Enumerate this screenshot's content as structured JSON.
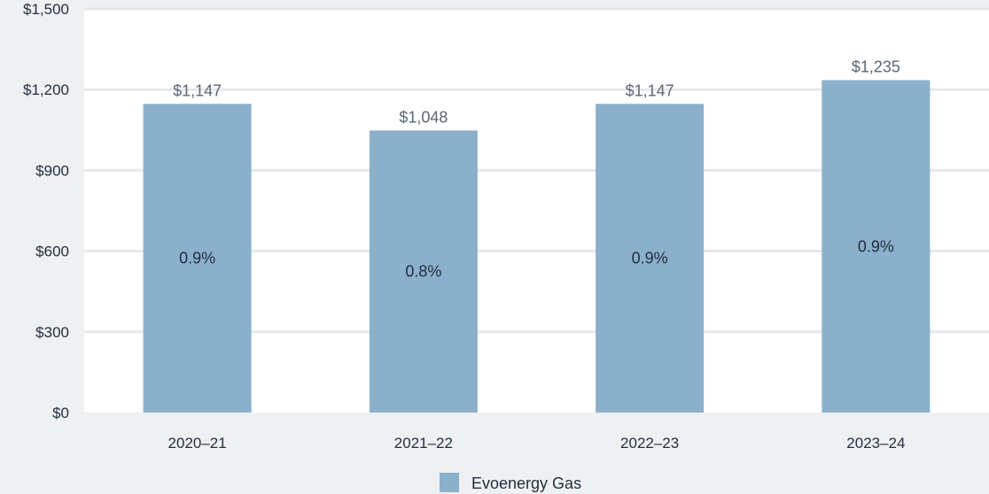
{
  "chart_data": {
    "type": "bar",
    "categories": [
      "2020–21",
      "2021–22",
      "2022–23",
      "2023–24"
    ],
    "series": [
      {
        "name": "Evoenergy Gas",
        "values": [
          1147,
          1048,
          1147,
          1235
        ],
        "value_labels": [
          "$1,147",
          "$1,048",
          "$1,147",
          "$1,235"
        ],
        "inner_labels": [
          "0.9%",
          "0.8%",
          "0.9%",
          "0.9%"
        ],
        "color": "#8bb0cc"
      }
    ],
    "ylim": [
      0,
      1500
    ],
    "yticks": [
      0,
      300,
      600,
      900,
      1200,
      1500
    ],
    "ytick_labels": [
      "$0",
      "$300",
      "$600",
      "$900",
      "$1,200",
      "$1,500"
    ],
    "grid": true,
    "legend_position": "bottom-center",
    "colors": {
      "background": "#eff0f2",
      "plot_background": "#ffffff",
      "gridline": "#e6e8ea"
    }
  }
}
